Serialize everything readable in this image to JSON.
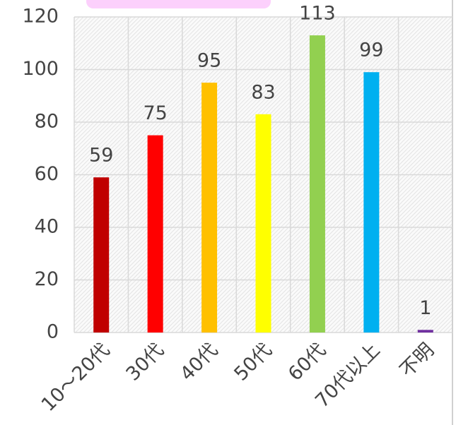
{
  "chart_data": {
    "type": "bar",
    "categories": [
      "10～20代",
      "30代",
      "40代",
      "50代",
      "60代",
      "70代以上",
      "不明"
    ],
    "values": [
      59,
      75,
      95,
      83,
      113,
      99,
      1
    ],
    "colors": [
      "#c00000",
      "#ff0000",
      "#ffc000",
      "#ffff00",
      "#92d050",
      "#00b0f0",
      "#7030a0"
    ],
    "ylim": [
      0,
      120
    ],
    "yticks": [
      0,
      20,
      40,
      60,
      80,
      100,
      120
    ],
    "grid": true
  }
}
